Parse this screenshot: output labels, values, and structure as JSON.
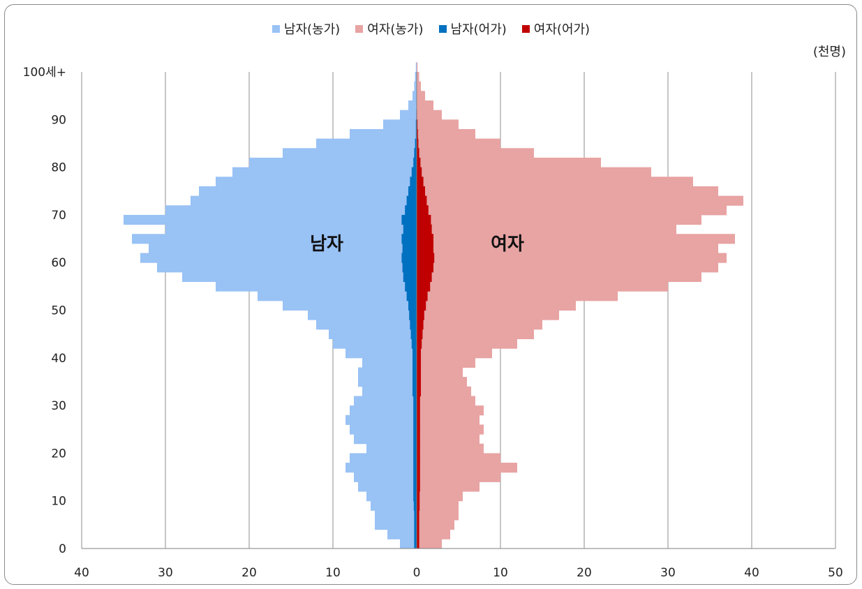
{
  "chart_data": {
    "type": "bar",
    "orientation": "horizontal",
    "unit_label": "(천명)",
    "x_ticks": [
      "40",
      "30",
      "20",
      "10",
      "0",
      "10",
      "20",
      "30",
      "40",
      "50"
    ],
    "y_ticks": [
      "0",
      "10",
      "20",
      "30",
      "40",
      "50",
      "60",
      "70",
      "80",
      "90",
      "100세+"
    ],
    "xlim": [
      -40,
      50
    ],
    "ylim": [
      0,
      100
    ],
    "grid": true,
    "legend_position": "top",
    "center_labels": {
      "left": "남자",
      "right": "여자"
    },
    "series": [
      {
        "name": "남자(농가)",
        "color": "#99c2f5",
        "side": "left",
        "ages": [
          0,
          2,
          4,
          6,
          8,
          10,
          12,
          14,
          16,
          18,
          20,
          22,
          24,
          26,
          28,
          30,
          32,
          34,
          36,
          38,
          40,
          42,
          44,
          46,
          48,
          50,
          52,
          54,
          56,
          58,
          60,
          62,
          64,
          66,
          68,
          70,
          72,
          74,
          76,
          78,
          80,
          82,
          84,
          86,
          88,
          90,
          92,
          94,
          96,
          98,
          100
        ],
        "values": [
          2,
          3.5,
          5,
          5,
          5.5,
          6,
          7,
          7.5,
          8.5,
          8,
          6,
          7.5,
          8,
          8.5,
          8,
          7.5,
          6.5,
          7,
          7,
          6.5,
          8.5,
          10,
          10.5,
          12,
          13,
          16,
          19,
          24,
          28,
          31,
          33,
          32,
          34,
          30,
          35,
          30,
          27,
          26,
          24,
          22,
          20,
          16,
          12,
          8,
          4,
          2,
          1,
          0.5,
          0.3,
          0.2,
          0.1
        ]
      },
      {
        "name": "여자(농가)",
        "color": "#e8a3a3",
        "side": "right",
        "ages": [
          0,
          2,
          4,
          6,
          8,
          10,
          12,
          14,
          16,
          18,
          20,
          22,
          24,
          26,
          28,
          30,
          32,
          34,
          36,
          38,
          40,
          42,
          44,
          46,
          48,
          50,
          52,
          54,
          56,
          58,
          60,
          62,
          64,
          66,
          68,
          70,
          72,
          74,
          76,
          78,
          80,
          82,
          84,
          86,
          88,
          90,
          92,
          94,
          96,
          98,
          100
        ],
        "values": [
          3,
          4,
          4.5,
          5,
          5,
          5.5,
          7.5,
          10,
          12,
          10,
          8,
          7.5,
          8,
          7.5,
          8,
          7,
          6.5,
          6,
          5.5,
          7,
          9,
          12,
          14,
          15,
          17,
          19,
          24,
          30,
          34,
          36,
          37,
          36,
          38,
          31,
          34,
          37,
          39,
          36,
          33,
          28,
          22,
          14,
          10,
          7,
          5,
          3,
          2,
          1,
          0.5,
          0.3,
          0.1
        ]
      },
      {
        "name": "남자(어가)",
        "color": "#0070c0",
        "side": "left",
        "ages": [
          0,
          2,
          4,
          6,
          8,
          10,
          12,
          14,
          16,
          18,
          20,
          22,
          24,
          26,
          28,
          30,
          32,
          34,
          36,
          38,
          40,
          42,
          44,
          46,
          48,
          50,
          52,
          54,
          56,
          58,
          60,
          62,
          64,
          66,
          68,
          70,
          72,
          74,
          76,
          78,
          80,
          82,
          84,
          86,
          88,
          90,
          92,
          94,
          96,
          98,
          100
        ],
        "values": [
          0.3,
          0.3,
          0.3,
          0.3,
          0.35,
          0.4,
          0.4,
          0.4,
          0.4,
          0.4,
          0.4,
          0.4,
          0.4,
          0.4,
          0.4,
          0.4,
          0.5,
          0.5,
          0.5,
          0.5,
          0.5,
          0.6,
          0.7,
          0.8,
          0.9,
          1.0,
          1.2,
          1.4,
          1.6,
          1.7,
          1.8,
          1.7,
          1.8,
          1.6,
          1.8,
          1.4,
          1.2,
          1.0,
          0.8,
          0.6,
          0.4,
          0.3,
          0.2,
          0.1,
          0.1,
          0.05,
          0,
          0,
          0,
          0,
          0
        ]
      },
      {
        "name": "여자(어가)",
        "color": "#c00000",
        "side": "right",
        "ages": [
          0,
          2,
          4,
          6,
          8,
          10,
          12,
          14,
          16,
          18,
          20,
          22,
          24,
          26,
          28,
          30,
          32,
          34,
          36,
          38,
          40,
          42,
          44,
          46,
          48,
          50,
          52,
          54,
          56,
          58,
          60,
          62,
          64,
          66,
          68,
          70,
          72,
          74,
          76,
          78,
          80,
          82,
          84,
          86,
          88,
          90,
          92,
          94,
          96,
          98,
          100
        ],
        "values": [
          0.3,
          0.3,
          0.3,
          0.3,
          0.35,
          0.35,
          0.4,
          0.4,
          0.4,
          0.4,
          0.4,
          0.4,
          0.4,
          0.4,
          0.4,
          0.4,
          0.5,
          0.5,
          0.5,
          0.5,
          0.5,
          0.6,
          0.7,
          0.8,
          0.9,
          1.1,
          1.3,
          1.6,
          1.8,
          2.0,
          2.1,
          2.0,
          2.0,
          1.8,
          1.7,
          1.4,
          1.2,
          1.0,
          0.8,
          0.6,
          0.45,
          0.3,
          0.2,
          0.15,
          0.1,
          0.05,
          0,
          0,
          0,
          0,
          0
        ]
      }
    ]
  }
}
